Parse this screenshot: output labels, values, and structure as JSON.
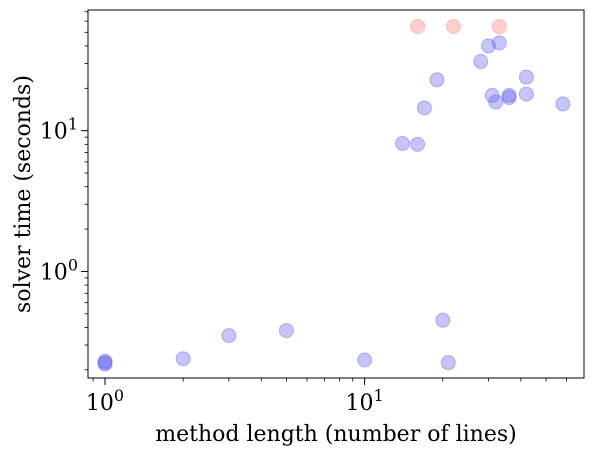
{
  "chart_data": {
    "type": "scatter",
    "title": "",
    "xlabel": "method length (number of lines)",
    "ylabel": "solver time (seconds)",
    "x_scale": "log",
    "y_scale": "log",
    "xlim": [
      0.86,
      70
    ],
    "ylim": [
      0.175,
      72
    ],
    "x_ticks": [
      {
        "value": 1,
        "base": "10",
        "exp": "0"
      },
      {
        "value": 10,
        "base": "10",
        "exp": "1"
      }
    ],
    "y_ticks": [
      {
        "value": 1,
        "base": "10",
        "exp": "0"
      },
      {
        "value": 10,
        "base": "10",
        "exp": "1"
      }
    ],
    "grid": false,
    "series": [
      {
        "color": "#6666ee",
        "points": [
          {
            "x": 1,
            "y": 0.225
          },
          {
            "x": 1,
            "y": 0.23
          },
          {
            "x": 1,
            "y": 0.22
          },
          {
            "x": 2,
            "y": 0.24
          },
          {
            "x": 3,
            "y": 0.35
          },
          {
            "x": 5,
            "y": 0.38
          },
          {
            "x": 10,
            "y": 0.235
          },
          {
            "x": 20,
            "y": 0.45
          },
          {
            "x": 21,
            "y": 0.225
          },
          {
            "x": 14,
            "y": 8.1
          },
          {
            "x": 16,
            "y": 8.0
          },
          {
            "x": 17,
            "y": 14.5
          },
          {
            "x": 19,
            "y": 23
          },
          {
            "x": 28,
            "y": 31
          },
          {
            "x": 30,
            "y": 40
          },
          {
            "x": 33,
            "y": 42
          },
          {
            "x": 31,
            "y": 17.8
          },
          {
            "x": 32,
            "y": 16
          },
          {
            "x": 36,
            "y": 17.2
          },
          {
            "x": 36,
            "y": 17.8
          },
          {
            "x": 42,
            "y": 18.2
          },
          {
            "x": 42,
            "y": 24
          },
          {
            "x": 58,
            "y": 15.5
          }
        ]
      },
      {
        "color": "#ff8080",
        "points": [
          {
            "x": 16,
            "y": 55
          },
          {
            "x": 22,
            "y": 55
          },
          {
            "x": 33,
            "y": 55
          }
        ]
      }
    ]
  }
}
